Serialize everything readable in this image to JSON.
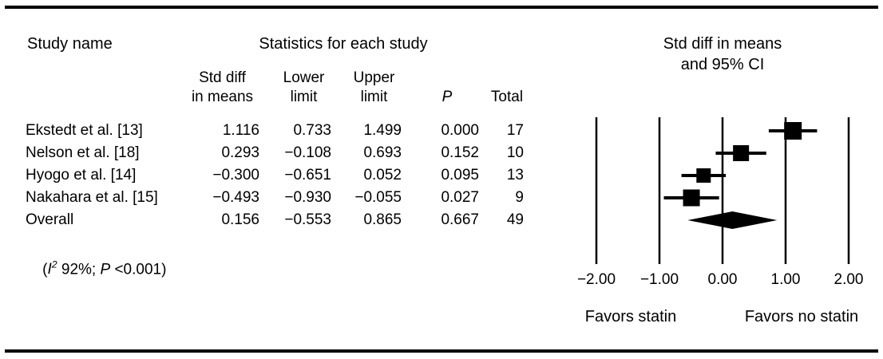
{
  "figure": {
    "headers": {
      "study_name": "Study name",
      "statistics": "Statistics for each study",
      "plot_title_line1": "Std diff in means",
      "plot_title_line2": "and 95% CI"
    },
    "columns": {
      "std_diff_line1": "Std diff",
      "std_diff_line2": "in means",
      "lower_line1": "Lower",
      "lower_line2": "limit",
      "upper_line1": "Upper",
      "upper_line2": "limit",
      "p": "P",
      "total": "Total"
    },
    "heterogeneity": {
      "open": "(",
      "i": "I",
      "sup": "2",
      "i_text": " 92%; ",
      "p": "P",
      "p_text": " <0.001)"
    },
    "favors_left": "Favors statin",
    "favors_right": "Favors no statin",
    "colors": {
      "ink": "#000000",
      "background": "#ffffff"
    }
  },
  "chart_data": {
    "type": "forest",
    "title": "Std diff in means and 95% CI",
    "xlim": [
      -2,
      2
    ],
    "grid": "vertical-lines-at-ticks",
    "axis_ticks": [
      {
        "value": -2,
        "label": "−2.00"
      },
      {
        "value": -1,
        "label": "−1.00"
      },
      {
        "value": 0,
        "label": "0.00"
      },
      {
        "value": 1,
        "label": "1.00"
      },
      {
        "value": 2,
        "label": "2.00"
      }
    ],
    "studies": [
      {
        "name": "Ekstedt et al. [13]",
        "value": 1.116,
        "ci_lower": 0.733,
        "ci_upper": 1.499,
        "p": 0.0,
        "total": 17,
        "marker_size": 22,
        "display": {
          "std_diff": "1.116",
          "lower": "0.733",
          "upper": "1.499",
          "p": "0.000",
          "total": "17"
        }
      },
      {
        "name": "Nelson et al. [18]",
        "value": 0.293,
        "ci_lower": -0.108,
        "ci_upper": 0.693,
        "p": 0.152,
        "total": 10,
        "marker_size": 20,
        "display": {
          "std_diff": "0.293",
          "lower": "−0.108",
          "upper": "0.693",
          "p": "0.152",
          "total": "10"
        }
      },
      {
        "name": "Hyogo et al. [14]",
        "value": -0.3,
        "ci_lower": -0.651,
        "ci_upper": 0.052,
        "p": 0.095,
        "total": 13,
        "marker_size": 18,
        "display": {
          "std_diff": "−0.300",
          "lower": "−0.651",
          "upper": "0.052",
          "p": "0.095",
          "total": "13"
        }
      },
      {
        "name": "Nakahara et al. [15]",
        "value": -0.493,
        "ci_lower": -0.93,
        "ci_upper": -0.055,
        "p": 0.027,
        "total": 9,
        "marker_size": 21,
        "display": {
          "std_diff": "−0.493",
          "lower": "−0.930",
          "upper": "−0.055",
          "p": "0.027",
          "total": "9"
        }
      }
    ],
    "overall": {
      "name": "Overall",
      "value": 0.156,
      "ci_lower": -0.553,
      "ci_upper": 0.865,
      "p": 0.667,
      "total": 49,
      "display": {
        "std_diff": "0.156",
        "lower": "−0.553",
        "upper": "0.865",
        "p": "0.667",
        "total": "49"
      },
      "heterogeneity_i2": "92%",
      "heterogeneity_p": "<0.001"
    },
    "favors_left": "Favors statin",
    "favors_right": "Favors no statin"
  }
}
